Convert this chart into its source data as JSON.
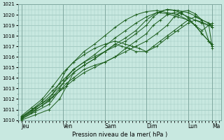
{
  "bg_color": "#c8e8e0",
  "plot_bg_color": "#c8e8e0",
  "grid_color": "#a0c8c0",
  "line_color": "#1a5c1a",
  "ylabel_text": "Pression niveau de la mer( hPa )",
  "ylim": [
    1010,
    1021
  ],
  "yticks": [
    1010,
    1011,
    1012,
    1013,
    1014,
    1015,
    1016,
    1017,
    1018,
    1019,
    1020,
    1021
  ],
  "xtick_labels": [
    "Jeu",
    "Ven",
    "Sam",
    "Dim",
    "Lun",
    "Ma"
  ],
  "xtick_positions": [
    0,
    24,
    48,
    72,
    96,
    110
  ],
  "xlim": [
    -2,
    115
  ],
  "figsize": [
    3.2,
    2.0
  ],
  "dpi": 100,
  "series": [
    {
      "x": [
        0,
        8,
        16,
        22,
        26,
        30,
        36,
        42,
        48,
        54,
        60,
        66,
        72,
        76,
        80,
        84,
        88,
        92,
        96,
        100,
        104,
        108,
        110
      ],
      "y": [
        1010.1,
        1010.8,
        1011.5,
        1012.8,
        1013.5,
        1014.0,
        1014.8,
        1015.2,
        1015.5,
        1016.0,
        1016.8,
        1017.5,
        1018.2,
        1019.0,
        1019.5,
        1020.0,
        1020.2,
        1020.1,
        1019.8,
        1019.5,
        1019.2,
        1019.0,
        1018.8
      ]
    },
    {
      "x": [
        0,
        8,
        16,
        22,
        26,
        30,
        36,
        42,
        48,
        54,
        60,
        66,
        72,
        76,
        80,
        84,
        88,
        92,
        96,
        100,
        104,
        108,
        110
      ],
      "y": [
        1010.2,
        1011.0,
        1011.8,
        1013.0,
        1014.0,
        1014.8,
        1015.5,
        1016.0,
        1016.5,
        1017.0,
        1017.5,
        1018.2,
        1019.0,
        1019.8,
        1020.3,
        1020.5,
        1020.4,
        1020.2,
        1019.7,
        1019.0,
        1018.5,
        1019.0,
        1019.2
      ]
    },
    {
      "x": [
        0,
        8,
        16,
        22,
        26,
        30,
        36,
        42,
        48,
        54,
        58,
        62,
        66,
        72,
        76,
        80,
        84,
        88,
        92,
        96,
        100,
        104,
        108,
        110
      ],
      "y": [
        1010.0,
        1010.5,
        1011.0,
        1012.0,
        1013.2,
        1014.5,
        1015.2,
        1015.8,
        1016.5,
        1017.2,
        1017.0,
        1016.8,
        1016.5,
        1016.5,
        1017.0,
        1017.5,
        1018.0,
        1018.5,
        1019.0,
        1019.5,
        1019.8,
        1019.5,
        1019.2,
        1019.0
      ]
    },
    {
      "x": [
        0,
        8,
        16,
        22,
        26,
        30,
        36,
        42,
        48,
        54,
        60,
        64,
        68,
        72,
        78,
        84,
        90,
        96,
        100,
        104,
        108,
        110
      ],
      "y": [
        1010.3,
        1011.2,
        1012.0,
        1013.5,
        1014.8,
        1015.5,
        1016.2,
        1016.8,
        1017.2,
        1017.5,
        1017.2,
        1017.0,
        1016.8,
        1016.5,
        1017.0,
        1017.8,
        1018.5,
        1019.2,
        1019.5,
        1019.3,
        1019.0,
        1016.8
      ]
    },
    {
      "x": [
        0,
        6,
        12,
        18,
        24,
        30,
        36,
        42,
        48,
        54,
        60,
        66,
        72,
        78,
        84,
        90,
        96,
        100,
        104,
        108,
        110
      ],
      "y": [
        1010.2,
        1010.9,
        1011.6,
        1012.5,
        1013.5,
        1014.5,
        1015.2,
        1015.8,
        1016.5,
        1017.2,
        1017.8,
        1018.5,
        1019.5,
        1020.2,
        1020.5,
        1020.4,
        1020.2,
        1019.9,
        1019.5,
        1019.2,
        1018.8
      ]
    },
    {
      "x": [
        0,
        6,
        12,
        18,
        24,
        30,
        36,
        42,
        48,
        54,
        60,
        66,
        72,
        78,
        84,
        88,
        92,
        96,
        100,
        104,
        108,
        110
      ],
      "y": [
        1010.1,
        1010.7,
        1011.4,
        1012.2,
        1013.0,
        1013.8,
        1014.5,
        1015.0,
        1015.5,
        1016.0,
        1016.5,
        1017.0,
        1017.5,
        1018.2,
        1019.0,
        1019.8,
        1020.3,
        1020.4,
        1020.1,
        1019.5,
        1017.5,
        1017.2
      ]
    },
    {
      "x": [
        0,
        6,
        12,
        18,
        24,
        30,
        36,
        42,
        48,
        54,
        60,
        66,
        72,
        78,
        84,
        90,
        96,
        100,
        104,
        108,
        110
      ],
      "y": [
        1010.3,
        1011.0,
        1011.8,
        1012.8,
        1013.8,
        1014.8,
        1015.5,
        1016.2,
        1017.0,
        1017.8,
        1018.5,
        1019.2,
        1019.8,
        1020.2,
        1020.1,
        1019.8,
        1019.5,
        1019.0,
        1018.2,
        1017.5,
        1017.0
      ]
    },
    {
      "x": [
        0,
        6,
        12,
        18,
        24,
        30,
        36,
        42,
        48,
        54,
        60,
        66,
        72,
        78,
        84,
        90,
        96,
        100,
        104,
        108,
        110
      ],
      "y": [
        1010.4,
        1011.2,
        1012.0,
        1013.2,
        1014.5,
        1015.5,
        1016.5,
        1017.2,
        1018.0,
        1018.8,
        1019.5,
        1020.0,
        1020.3,
        1020.4,
        1020.2,
        1020.0,
        1019.5,
        1019.0,
        1018.2,
        1017.5,
        1017.0
      ]
    }
  ]
}
